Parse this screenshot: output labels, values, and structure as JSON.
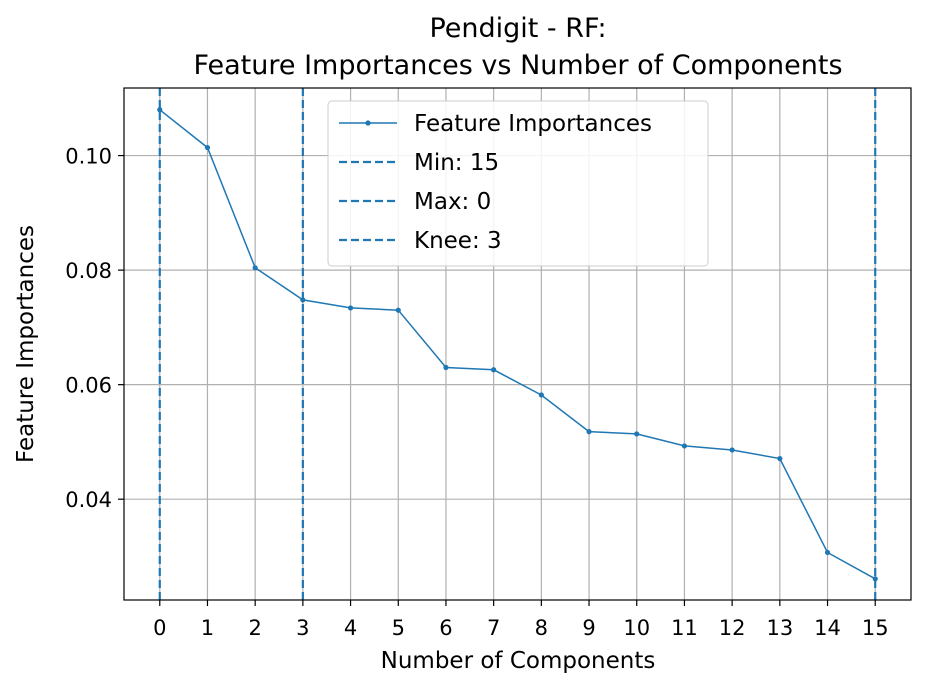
{
  "chart_data": {
    "type": "line",
    "title_lines": [
      "Pendigit - RF:",
      "Feature Importances vs Number of Components"
    ],
    "xlabel": "Number of Components",
    "ylabel": "Feature Importances",
    "x": [
      0,
      1,
      2,
      3,
      4,
      5,
      6,
      7,
      8,
      9,
      10,
      11,
      12,
      13,
      14,
      15
    ],
    "x_tick_labels": [
      "0",
      "1",
      "2",
      "3",
      "4",
      "5",
      "6",
      "7",
      "8",
      "9",
      "10",
      "11",
      "12",
      "13",
      "14",
      "15"
    ],
    "y_ticks": [
      0.04,
      0.06,
      0.08,
      0.1
    ],
    "y_tick_labels": [
      "0.04",
      "0.06",
      "0.08",
      "0.10"
    ],
    "xlim": [
      -0.75,
      15.75
    ],
    "ylim": [
      0.0224,
      0.1118
    ],
    "grid": true,
    "legend_position": "top-center",
    "series": [
      {
        "name": "Feature Importances",
        "color": "#1f77b4",
        "values": [
          0.108,
          0.1014,
          0.0804,
          0.0748,
          0.0734,
          0.073,
          0.063,
          0.0626,
          0.0582,
          0.0518,
          0.0514,
          0.0493,
          0.0486,
          0.0471,
          0.0307,
          0.0261
        ]
      }
    ],
    "vlines": [
      {
        "name": "Min: 15",
        "x": 15,
        "color": "#1f77b4",
        "style": "dashed"
      },
      {
        "name": "Max: 0",
        "x": 0,
        "color": "#1f77b4",
        "style": "dashed"
      },
      {
        "name": "Knee: 3",
        "x": 3,
        "color": "#1f77b4",
        "style": "dashed"
      }
    ]
  }
}
